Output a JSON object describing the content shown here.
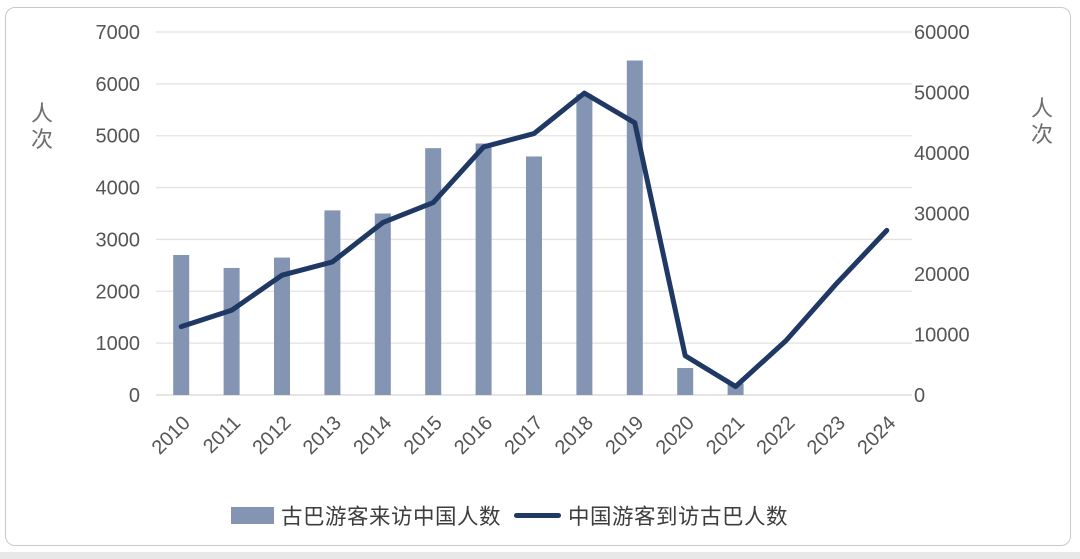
{
  "chart_data": {
    "type": "combo-bar-line",
    "categories": [
      "2010",
      "2011",
      "2012",
      "2013",
      "2014",
      "2015",
      "2016",
      "2017",
      "2018",
      "2019",
      "2020",
      "2021",
      "2022",
      "2023",
      "2024"
    ],
    "series": [
      {
        "name": "古巴游客来访中国人数",
        "type": "bar",
        "axis": "left",
        "color": "#8395B2",
        "values": [
          2700,
          2450,
          2650,
          3560,
          3500,
          4760,
          4850,
          4600,
          5800,
          6450,
          520,
          220,
          null,
          null,
          null
        ]
      },
      {
        "name": "中国游客到访古巴人数",
        "type": "line",
        "axis": "right",
        "color": "#1F3864",
        "values": [
          11300,
          14000,
          19800,
          22000,
          28500,
          31800,
          41000,
          43200,
          49900,
          45000,
          6500,
          1400,
          9000,
          18400,
          27200
        ]
      }
    ],
    "left_axis": {
      "label": "人次",
      "min": 0,
      "max": 7000,
      "step": 1000,
      "tick_labels": [
        "0",
        "1000",
        "2000",
        "3000",
        "4000",
        "5000",
        "6000",
        "7000"
      ]
    },
    "right_axis": {
      "label": "人次",
      "min": 0,
      "max": 60000,
      "step": 10000,
      "tick_labels": [
        "0",
        "10000",
        "20000",
        "30000",
        "40000",
        "50000",
        "60000"
      ]
    },
    "grid": true,
    "legend_position": "bottom",
    "title": ""
  },
  "colors": {
    "bar": "#8395B2",
    "line": "#1F3864",
    "gridline": "#E2E2E2",
    "axis_line": "#D5D5D5",
    "tick_text": "#555555",
    "unit_text": "#6E6E6E",
    "legend_text": "#3D3D3D",
    "card_border": "#C9C9C9"
  }
}
